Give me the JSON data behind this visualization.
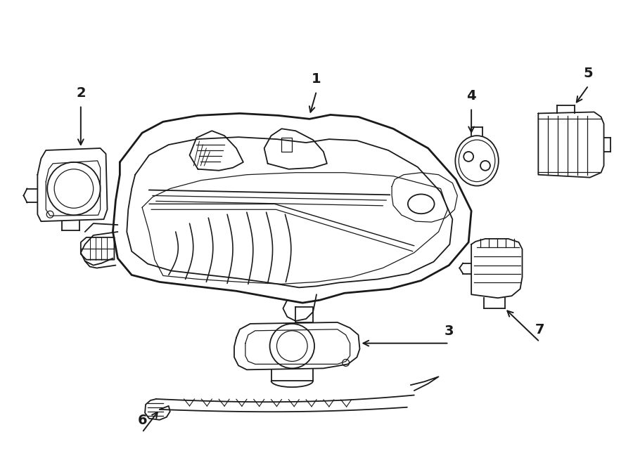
{
  "background_color": "#ffffff",
  "line_color": "#1a1a1a",
  "lw_outer": 2.0,
  "lw_inner": 1.3,
  "lw_thin": 0.9,
  "figure_width": 9.0,
  "figure_height": 6.62,
  "dpi": 100
}
